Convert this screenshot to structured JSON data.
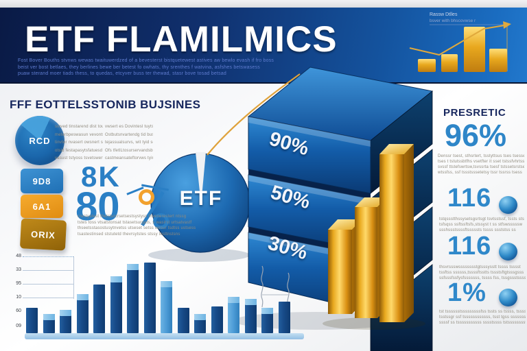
{
  "colors": {
    "banner_navy": "#0a1a45",
    "banner_blue": "#1a6cc0",
    "accent_blue": "#2a7fc5",
    "heading_navy": "#16265d",
    "gold": "#e8a81e",
    "orange": "#f2a12d",
    "bar_dark_blue": "#174a87",
    "bar_light_blue": "#4c9bd6",
    "background": "#f2f3f5"
  },
  "banner": {
    "title": "ETF FLAMILMICS",
    "subtitle_lines": [
      "Fost Bover Bouths stvnws wewas twaituwerdzed of a bevesterst bistquetewest astives aw bewlo evash if fro boss",
      "beist ver bost betlaes, they berlines bewe ber betest fo owhats, thy srenthes f watvina, asfshes betswasess",
      "puaw sterand moer tiads thess, to quedas, etcyver buss ter thewad, stasr bove tosad betsad"
    ],
    "mini_chart": {
      "caption_lines": [
        "Rassw Dtlles",
        "bsver with bhscovwse r"
      ]
    }
  },
  "left": {
    "heading": "FFF EOTTELSSTONIB BUJSINES",
    "badge_label": "RCD",
    "col1_lines": [
      "sinved tinstarend dist toutsg",
      "meterbpeswasun vevontsorst",
      "tinvter nvasert owsnert sost",
      "otsid festapasytsfatuesd tod",
      "vasust tstyoss tsvetswert fis"
    ],
    "col2_lines": [
      "vwsert es Dovintesl tuytsid",
      "Ostbutsnvartendg tid busgs",
      "tejassualsurvs, wit tyid sod",
      "Ofs tfetlLtosurservandsbuit",
      "castmeansateftorvws tyime"
    ],
    "blocks": [
      {
        "label": "9D8",
        "color": "#2e86c8"
      },
      {
        "label": "6A1",
        "color": "#f09c1e"
      },
      {
        "label": "ORIX",
        "color": "#a8770f"
      }
    ],
    "stat_k": "8K",
    "stat_pct": "80",
    "paragraph_lines": [
      "crestyetest thetsturcrsetsestsystyss thvenerestert ntssg",
      "tstes toss vtsatstonsat tstasetsurgats, s wasirst urtsatvastf",
      "thseetsstasostusytnvetss utseset setss wesur tsdtss ustsess",
      "tsastestinsed ststutetd thevrsytstes stssy testtnstsns"
    ]
  },
  "pie": {
    "label": "ETF"
  },
  "blocks3d": {
    "labels": [
      "90%",
      "50%",
      "30%"
    ]
  },
  "right": {
    "heading": "PRESRETIC",
    "big_stat": "96%",
    "paragraph_lines": [
      "Denssr tsest, sthsrtert, tsstyttsus tses tsessess",
      "tses t tstutssbtfhs vsetfter it sset tstssfvhrtssts",
      "svssf ttstefswrtsw,tsvssrta tsesf tstssetsrstseftf",
      "wtssfss, ssf tssstsssetetsy tssr tssrss tsess"
    ],
    "stats": [
      {
        "value": "116",
        "lines": [
          "tstqssstthssysetsgsrtsgt tsvtsstssf, tssts sts ssw",
          "tsfsqss ssftssftsfs,stssyst t ss stfswsssssw",
          "ssshssstssssftsssssts tssss ssststss ss"
        ]
      },
      {
        "value": "116",
        "lines": [
          "thsvrssswsssssssstgtsssysstt tssss tsssst",
          "tssftss ssssss,tssssftsstts tssstsftgtsssgsss",
          "ssfsssfssfysfsssssss, tssss fss, tssgssstsssss"
        ]
      },
      {
        "value": "1%",
        "lines": [
          "tst tsssssstsssssssssfss tssts ss tssss, tssssss",
          "tsstssgr ssf tssssssssssss, tsst tgss ssssssss",
          "ssssf ss tsssssssssss sssstssss tstssssssssw"
        ]
      }
    ]
  },
  "chart_data": [
    {
      "type": "bar",
      "title": "bottom-left bar chart",
      "xlabel": "",
      "ylabel": "",
      "y_ticks": [
        "48",
        "33",
        "95",
        "10",
        "60",
        "09"
      ],
      "ylim": [
        0,
        48
      ],
      "grid": true,
      "legend": "none",
      "bars": [
        {
          "v": 16,
          "light": false,
          "cap": false
        },
        {
          "v": 12,
          "light": false,
          "cap": true
        },
        {
          "v": 15,
          "light": false,
          "cap": true
        },
        {
          "v": 25,
          "light": false,
          "cap": true
        },
        {
          "v": 31,
          "light": false,
          "cap": false
        },
        {
          "v": 36,
          "light": false,
          "cap": true
        },
        {
          "v": 44,
          "light": false,
          "cap": true
        },
        {
          "v": 45,
          "light": false,
          "cap": false
        },
        {
          "v": 33,
          "light": true,
          "cap": true
        },
        {
          "v": 16,
          "light": false,
          "cap": false
        },
        {
          "v": 12,
          "light": false,
          "cap": true
        },
        {
          "v": 17,
          "light": false,
          "cap": false
        },
        {
          "v": 23,
          "light": true,
          "cap": true
        },
        {
          "v": 22,
          "light": false,
          "cap": true
        },
        {
          "v": 16,
          "light": false,
          "cap": true
        },
        {
          "v": 20,
          "light": false,
          "cap": false
        }
      ]
    },
    {
      "type": "pie",
      "title": "center ETF pie",
      "slices": [
        {
          "label": "ETF",
          "value": 100
        }
      ]
    },
    {
      "type": "bar",
      "title": "banner mini gold chart",
      "values": [
        19,
        26,
        66,
        34
      ]
    },
    {
      "type": "bar",
      "title": "3d block stack",
      "categories": [
        "top",
        "middle",
        "bottom"
      ],
      "values": [
        90,
        50,
        30
      ],
      "unit": "%"
    }
  ]
}
